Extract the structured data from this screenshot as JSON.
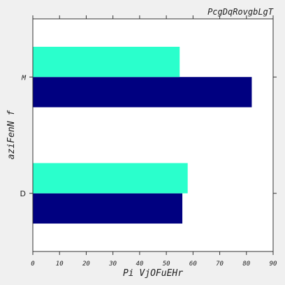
{
  "chart_data": {
    "type": "bar",
    "orientation": "horizontal",
    "title": "PcgDqRovgbLgT",
    "xlabel": "Pi VjOFuEHr",
    "ylabel": "aziFenN f",
    "categories": [
      "D",
      "M"
    ],
    "series": [
      {
        "values": [
          56,
          82
        ],
        "color": "#000080"
      },
      {
        "values": [
          58,
          55
        ],
        "color": "#2affcc"
      }
    ],
    "xlim": [
      0,
      90
    ],
    "xticks": [
      "0",
      "10",
      "20",
      "30",
      "40",
      "50",
      "60",
      "70",
      "80",
      "90"
    ],
    "grid": false,
    "legend": "none"
  }
}
